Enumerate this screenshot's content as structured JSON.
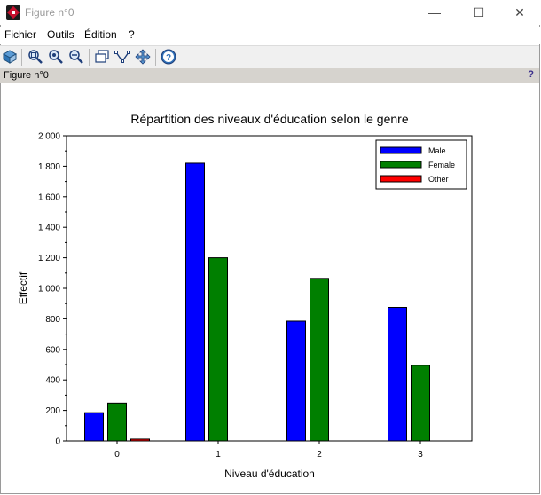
{
  "window": {
    "title": "Figure n°0",
    "controls": {
      "minimize": "—",
      "maximize": "☐",
      "close": "✕"
    }
  },
  "menu": {
    "items": [
      "Fichier",
      "Outils",
      "Édition",
      "?"
    ]
  },
  "figure_bar": {
    "label": "Figure n°0",
    "help": "?"
  },
  "chart_data": {
    "type": "bar",
    "title": "Répartition des niveaux d'éducation selon le genre",
    "xlabel": "Niveau d'éducation",
    "ylabel": "Effectif",
    "categories": [
      "0",
      "1",
      "2",
      "3"
    ],
    "ylim": [
      0,
      2000
    ],
    "yticks": [
      0,
      200,
      400,
      600,
      800,
      1000,
      1200,
      1400,
      1600,
      1800,
      2000
    ],
    "ytick_labels": [
      "0",
      "200",
      "400",
      "600",
      "800",
      "1 000",
      "1 200",
      "1 400",
      "1 600",
      "1 800",
      "2 000"
    ],
    "series": [
      {
        "name": "Male",
        "color": "#0000ff",
        "values": [
          185,
          1820,
          785,
          875
        ]
      },
      {
        "name": "Female",
        "color": "#007f00",
        "values": [
          248,
          1200,
          1065,
          495
        ]
      },
      {
        "name": "Other",
        "color": "#ff0000",
        "values": [
          12,
          0,
          0,
          0
        ]
      }
    ],
    "legend_position": "top-right",
    "grid": false
  }
}
